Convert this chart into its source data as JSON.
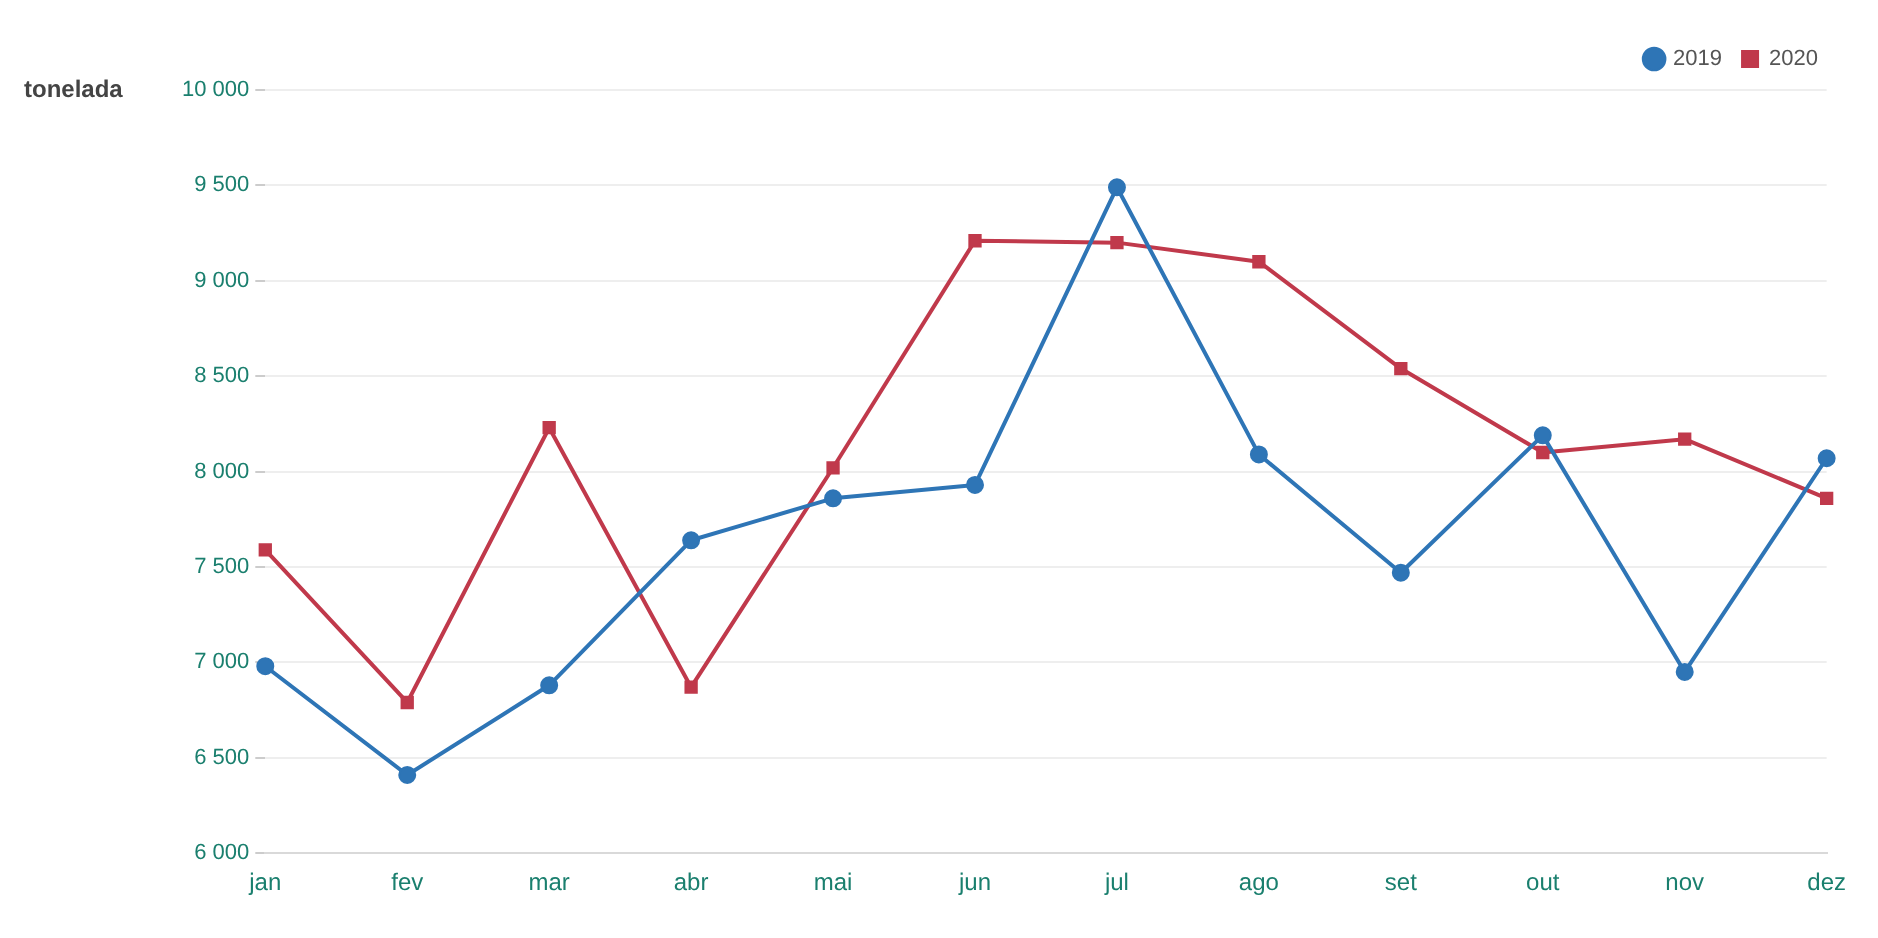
{
  "chart_data": {
    "type": "line",
    "ylabel": "tonelada",
    "categories": [
      "jan",
      "fev",
      "mar",
      "abr",
      "mai",
      "jun",
      "jul",
      "ago",
      "set",
      "out",
      "nov",
      "dez"
    ],
    "series": [
      {
        "name": "2019",
        "color": "#2e75b6",
        "marker": "circle",
        "values": [
          6980,
          6410,
          6880,
          7640,
          7860,
          7930,
          9490,
          8090,
          7470,
          8190,
          6950,
          8070
        ]
      },
      {
        "name": "2020",
        "color": "#c0394b",
        "marker": "square",
        "values": [
          7590,
          6790,
          8230,
          6870,
          8020,
          9210,
          9200,
          9100,
          8540,
          8100,
          8170,
          7860
        ]
      }
    ],
    "ylim": [
      6000,
      10000
    ],
    "yticks": [
      6000,
      6500,
      7000,
      7500,
      8000,
      8500,
      9000,
      9500,
      10000
    ],
    "grid": "y",
    "legend": "top right"
  }
}
